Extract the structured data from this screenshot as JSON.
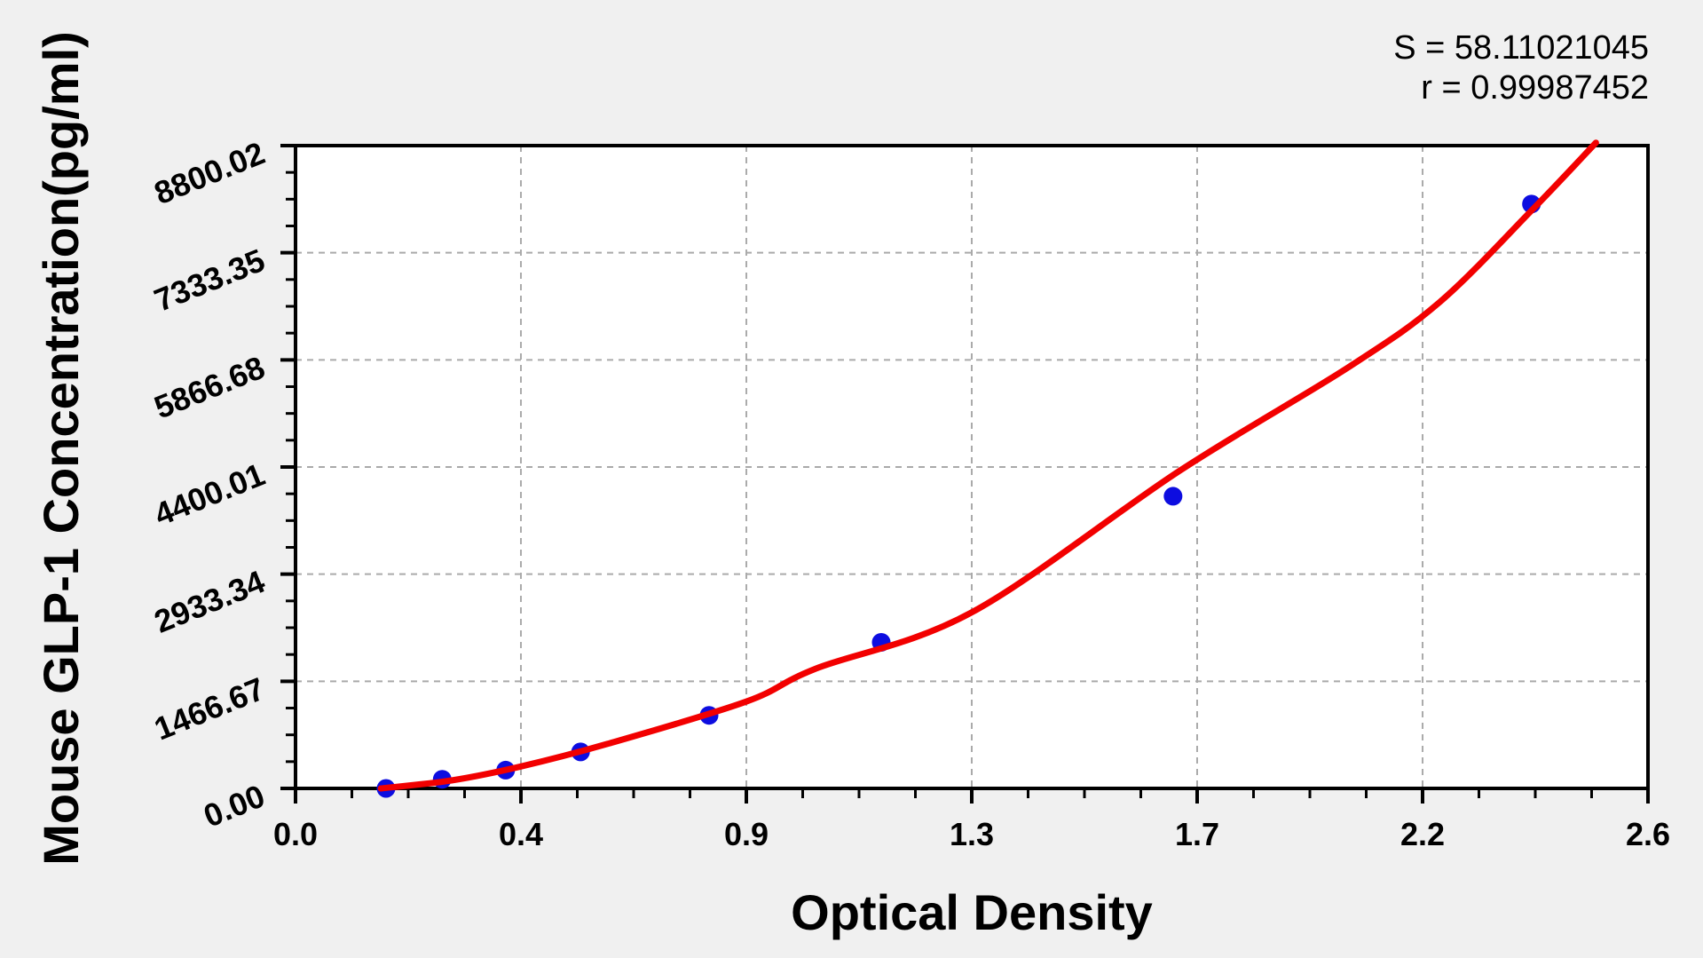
{
  "page": {
    "background": "#f0f0f0"
  },
  "stats": {
    "s": "S = 58.11021045",
    "r": "r = 0.99987452"
  },
  "chart_data": {
    "type": "scatter",
    "title": "",
    "xlabel": "Optical Density",
    "ylabel": "Mouse GLP-1 Concentration(pg/ml)",
    "xlim": [
      0,
      2.6
    ],
    "ylim": [
      0,
      8800.02
    ],
    "grid": "dashed-major-gridlines",
    "legend": "none",
    "minor_ticks_per_major": 4,
    "x_ticks": {
      "values": [
        0,
        0.4333,
        0.8667,
        1.3,
        1.7333,
        2.1667,
        2.6
      ],
      "labels": [
        "0.0",
        "0.4",
        "0.9",
        "1.3",
        "1.7",
        "2.2",
        "2.6"
      ]
    },
    "y_ticks": {
      "values": [
        0,
        1466.67,
        2933.34,
        4400.01,
        5866.68,
        7333.35,
        8800.02
      ],
      "labels": [
        "0.00",
        "1466.67",
        "2933.34",
        "4400.01",
        "5866.68",
        "7333.35",
        "8800.02"
      ]
    },
    "series": [
      {
        "name": "standard-points",
        "type": "scatter",
        "marker": "circle",
        "color": "#0d0de0",
        "points": [
          {
            "od": 0.174,
            "concentration": 0
          },
          {
            "od": 0.282,
            "concentration": 125
          },
          {
            "od": 0.404,
            "concentration": 250
          },
          {
            "od": 0.548,
            "concentration": 500
          },
          {
            "od": 0.795,
            "concentration": 1000
          },
          {
            "od": 1.126,
            "concentration": 2000
          },
          {
            "od": 1.687,
            "concentration": 4000
          },
          {
            "od": 2.376,
            "concentration": 8000
          }
        ]
      },
      {
        "name": "fitted-curve",
        "type": "line",
        "color": "#f20000",
        "points": [
          {
            "od": 0.164,
            "concentration": 0
          },
          {
            "od": 0.3,
            "concentration": 110
          },
          {
            "od": 0.433,
            "concentration": 300
          },
          {
            "od": 0.6,
            "concentration": 610
          },
          {
            "od": 0.867,
            "concentration": 1190
          },
          {
            "od": 1.0,
            "concentration": 1640
          },
          {
            "od": 1.3,
            "concentration": 2410
          },
          {
            "od": 1.7,
            "concentration": 4350
          },
          {
            "od": 2.025,
            "concentration": 5770
          },
          {
            "od": 2.2,
            "concentration": 6660
          },
          {
            "od": 2.376,
            "concentration": 7910
          },
          {
            "od": 2.5,
            "concentration": 8840
          }
        ]
      }
    ],
    "colors": {
      "grid": "#aaaaaa",
      "axis": "#000000",
      "plot_background": "#ffffff",
      "page_background": "#f0f0f0",
      "text": "#000000"
    }
  }
}
